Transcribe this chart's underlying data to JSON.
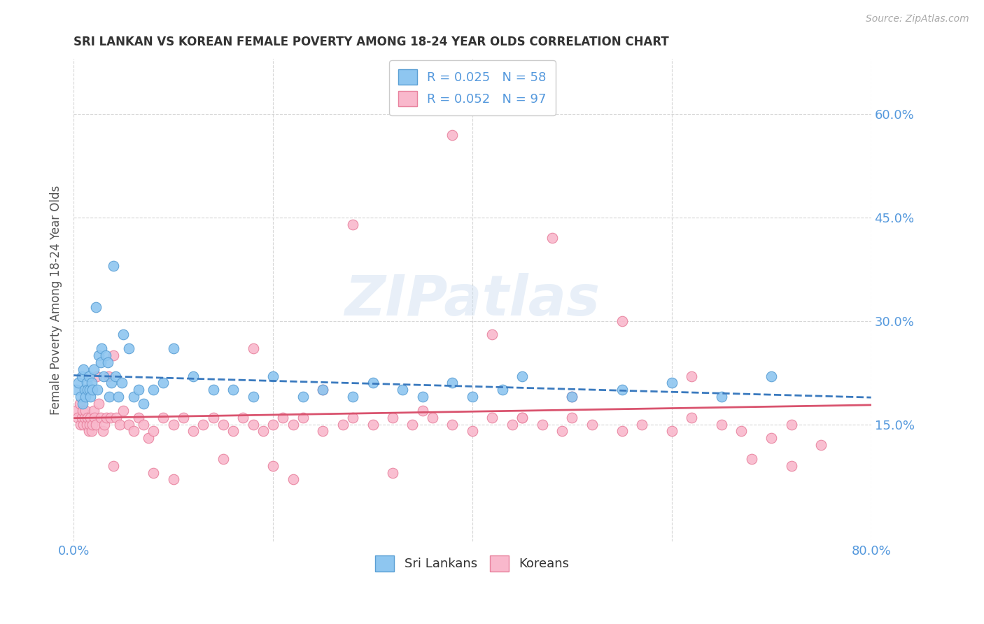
{
  "title": "SRI LANKAN VS KOREAN FEMALE POVERTY AMONG 18-24 YEAR OLDS CORRELATION CHART",
  "source": "Source: ZipAtlas.com",
  "ylabel": "Female Poverty Among 18-24 Year Olds",
  "xlim": [
    0.0,
    0.8
  ],
  "ylim": [
    -0.02,
    0.68
  ],
  "yticks": [
    0.15,
    0.3,
    0.45,
    0.6
  ],
  "ytick_labels": [
    "15.0%",
    "30.0%",
    "45.0%",
    "60.0%"
  ],
  "xticks": [
    0.0,
    0.2,
    0.4,
    0.6,
    0.8
  ],
  "xtick_labels": [
    "0.0%",
    "",
    "",
    "",
    "80.0%"
  ],
  "sri_lanka_color": "#8ec6f0",
  "korean_color": "#f9b8cc",
  "sri_lanka_edge": "#5a9fd4",
  "korean_edge": "#e8829e",
  "trend_sri_lanka_color": "#3a7abf",
  "trend_korean_color": "#d9536e",
  "legend_r_sri": "R = 0.025",
  "legend_n_sri": "N = 58",
  "legend_r_kor": "R = 0.052",
  "legend_n_kor": "N = 97",
  "legend_label_sri": "Sri Lankans",
  "legend_label_kor": "Koreans",
  "watermark": "ZIPatlas",
  "background_color": "#ffffff",
  "grid_color": "#cccccc",
  "title_color": "#333333",
  "axis_label_color": "#5599dd",
  "sri_lanka_x": [
    0.003,
    0.005,
    0.007,
    0.008,
    0.009,
    0.01,
    0.011,
    0.012,
    0.013,
    0.014,
    0.015,
    0.016,
    0.017,
    0.018,
    0.019,
    0.02,
    0.022,
    0.024,
    0.025,
    0.027,
    0.028,
    0.03,
    0.032,
    0.034,
    0.036,
    0.038,
    0.04,
    0.042,
    0.045,
    0.048,
    0.05,
    0.055,
    0.06,
    0.065,
    0.07,
    0.08,
    0.09,
    0.1,
    0.12,
    0.14,
    0.16,
    0.18,
    0.2,
    0.23,
    0.25,
    0.28,
    0.3,
    0.33,
    0.35,
    0.38,
    0.4,
    0.43,
    0.45,
    0.5,
    0.55,
    0.6,
    0.65,
    0.7
  ],
  "sri_lanka_y": [
    0.2,
    0.21,
    0.19,
    0.22,
    0.18,
    0.23,
    0.2,
    0.19,
    0.21,
    0.2,
    0.22,
    0.2,
    0.19,
    0.21,
    0.2,
    0.23,
    0.32,
    0.2,
    0.25,
    0.24,
    0.26,
    0.22,
    0.25,
    0.24,
    0.19,
    0.21,
    0.38,
    0.22,
    0.19,
    0.21,
    0.28,
    0.26,
    0.19,
    0.2,
    0.18,
    0.2,
    0.21,
    0.26,
    0.22,
    0.2,
    0.2,
    0.19,
    0.22,
    0.19,
    0.2,
    0.19,
    0.21,
    0.2,
    0.19,
    0.21,
    0.19,
    0.2,
    0.22,
    0.19,
    0.2,
    0.21,
    0.19,
    0.22
  ],
  "korean_x": [
    0.002,
    0.004,
    0.006,
    0.007,
    0.008,
    0.009,
    0.01,
    0.011,
    0.012,
    0.013,
    0.014,
    0.015,
    0.016,
    0.017,
    0.018,
    0.019,
    0.02,
    0.021,
    0.022,
    0.023,
    0.025,
    0.027,
    0.029,
    0.031,
    0.033,
    0.035,
    0.037,
    0.04,
    0.043,
    0.046,
    0.05,
    0.055,
    0.06,
    0.065,
    0.07,
    0.075,
    0.08,
    0.09,
    0.1,
    0.11,
    0.12,
    0.13,
    0.14,
    0.15,
    0.16,
    0.17,
    0.18,
    0.19,
    0.2,
    0.21,
    0.22,
    0.23,
    0.25,
    0.27,
    0.28,
    0.3,
    0.32,
    0.34,
    0.36,
    0.38,
    0.4,
    0.42,
    0.44,
    0.45,
    0.47,
    0.49,
    0.5,
    0.52,
    0.55,
    0.57,
    0.6,
    0.62,
    0.65,
    0.67,
    0.7,
    0.72,
    0.75,
    0.18,
    0.25,
    0.35,
    0.42,
    0.5,
    0.38,
    0.28,
    0.48,
    0.55,
    0.62,
    0.68,
    0.72,
    0.45,
    0.32,
    0.22,
    0.15,
    0.08,
    0.04,
    0.1,
    0.2
  ],
  "korean_y": [
    0.17,
    0.16,
    0.18,
    0.15,
    0.16,
    0.17,
    0.15,
    0.16,
    0.17,
    0.15,
    0.16,
    0.14,
    0.15,
    0.16,
    0.14,
    0.15,
    0.17,
    0.16,
    0.15,
    0.22,
    0.18,
    0.16,
    0.14,
    0.15,
    0.16,
    0.22,
    0.16,
    0.25,
    0.16,
    0.15,
    0.17,
    0.15,
    0.14,
    0.16,
    0.15,
    0.13,
    0.14,
    0.16,
    0.15,
    0.16,
    0.14,
    0.15,
    0.16,
    0.15,
    0.14,
    0.16,
    0.15,
    0.14,
    0.15,
    0.16,
    0.15,
    0.16,
    0.14,
    0.15,
    0.16,
    0.15,
    0.16,
    0.15,
    0.16,
    0.15,
    0.14,
    0.16,
    0.15,
    0.16,
    0.15,
    0.14,
    0.16,
    0.15,
    0.14,
    0.15,
    0.14,
    0.16,
    0.15,
    0.14,
    0.13,
    0.15,
    0.12,
    0.26,
    0.2,
    0.17,
    0.28,
    0.19,
    0.57,
    0.44,
    0.42,
    0.3,
    0.22,
    0.1,
    0.09,
    0.16,
    0.08,
    0.07,
    0.1,
    0.08,
    0.09,
    0.07,
    0.09
  ]
}
